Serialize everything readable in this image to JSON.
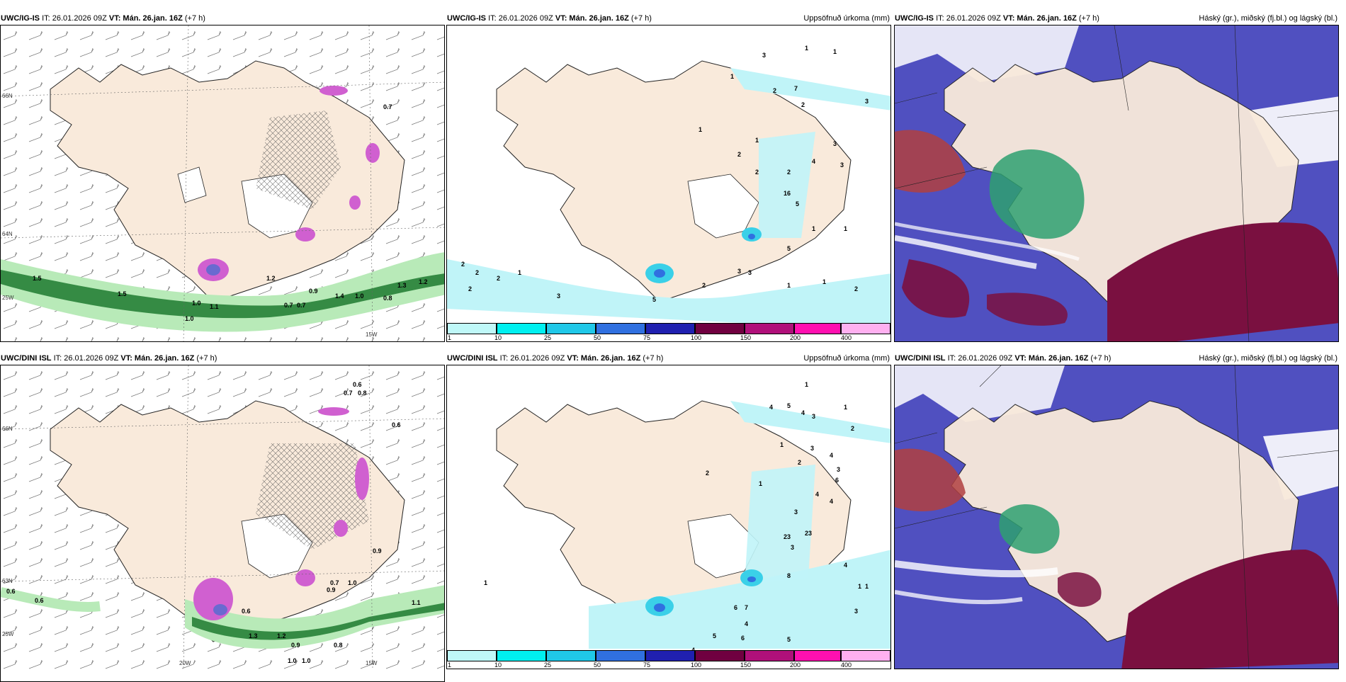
{
  "rows": [
    {
      "model": "UWC/IG-IS",
      "init": "IT: 26.01.2026 09Z",
      "vt_prefix": "VT:",
      "vt": "Mán. 26.jan. 16Z",
      "lead": "(+7 h)",
      "panel2_title": "Uppsöfnuð úrkoma (mm)",
      "panel3_title": "Háský (gr.), miðský (fj.bl.) og lágský (bl.)",
      "wind_labels": [
        "0.7",
        "1.0",
        "0.9",
        "1.0",
        "1.1",
        "1.2",
        "1.3",
        "1.5",
        "0.7",
        "0.7",
        "1.4",
        "0.8",
        "1.5",
        "1.0",
        "1.2"
      ],
      "precip_labels": [
        "3",
        "1",
        "1",
        "7",
        "2",
        "2",
        "1",
        "1",
        "2",
        "3",
        "1",
        "16",
        "2",
        "4",
        "1",
        "5",
        "5",
        "2",
        "3",
        "3",
        "2",
        "1",
        "2",
        "2",
        "1",
        "3",
        "2",
        "5",
        "3",
        "3",
        "1",
        "2",
        "2",
        "1"
      ]
    },
    {
      "model": "UWC/DINI ISL",
      "init": "IT: 26.01.2026 09Z",
      "vt_prefix": "VT:",
      "vt": "Mán. 26.jan. 16Z",
      "lead": "(+7 h)",
      "panel2_title": "Uppsöfnuð úrkoma (mm)",
      "panel3_title": "Háský (gr.), miðský (fj.bl.) og lágský (bl.)",
      "wind_labels": [
        "0.6",
        "0.7",
        "0.8",
        "0.6",
        "0.6",
        "0.6",
        "0.7",
        "1.0",
        "1.1",
        "1.2",
        "0.9",
        "0.8",
        "1.0",
        "0.6",
        "0.9",
        "1.3",
        "1.0",
        "0.9"
      ],
      "precip_labels": [
        "1",
        "4",
        "5",
        "4",
        "3",
        "1",
        "2",
        "1",
        "3",
        "2",
        "4",
        "3",
        "1",
        "2",
        "6",
        "4",
        "4",
        "3",
        "23",
        "3",
        "23",
        "8",
        "4",
        "6",
        "7",
        "4",
        "5",
        "6",
        "3",
        "4",
        "5",
        "1",
        "1",
        "3",
        "1"
      ]
    }
  ],
  "axes": {
    "lat_labels": [
      "66N",
      "64N",
      "63N",
      "25W"
    ],
    "lon_labels": [
      "20W",
      "15W"
    ]
  },
  "colorbar": {
    "ticks": [
      "1",
      "10",
      "25",
      "50",
      "75",
      "100",
      "150",
      "200",
      "400"
    ],
    "colors": [
      "#bff8f8",
      "#00f0f0",
      "#20c8e8",
      "#3070e0",
      "#2020b0",
      "#700040",
      "#b0107a",
      "#ff10b0",
      "#ffb0f0"
    ]
  },
  "colors": {
    "land": "#f9eadb",
    "cloud_high": "#5050c0",
    "cloud_mid": "#2ea070",
    "cloud_low": "#7a1040",
    "precip_light": "#c0f4f8",
    "precip_mid": "#3ad0e8",
    "wind_green": "#1d7a2f",
    "wind_green_light": "#b8eab8",
    "pink": "#d060d0"
  }
}
